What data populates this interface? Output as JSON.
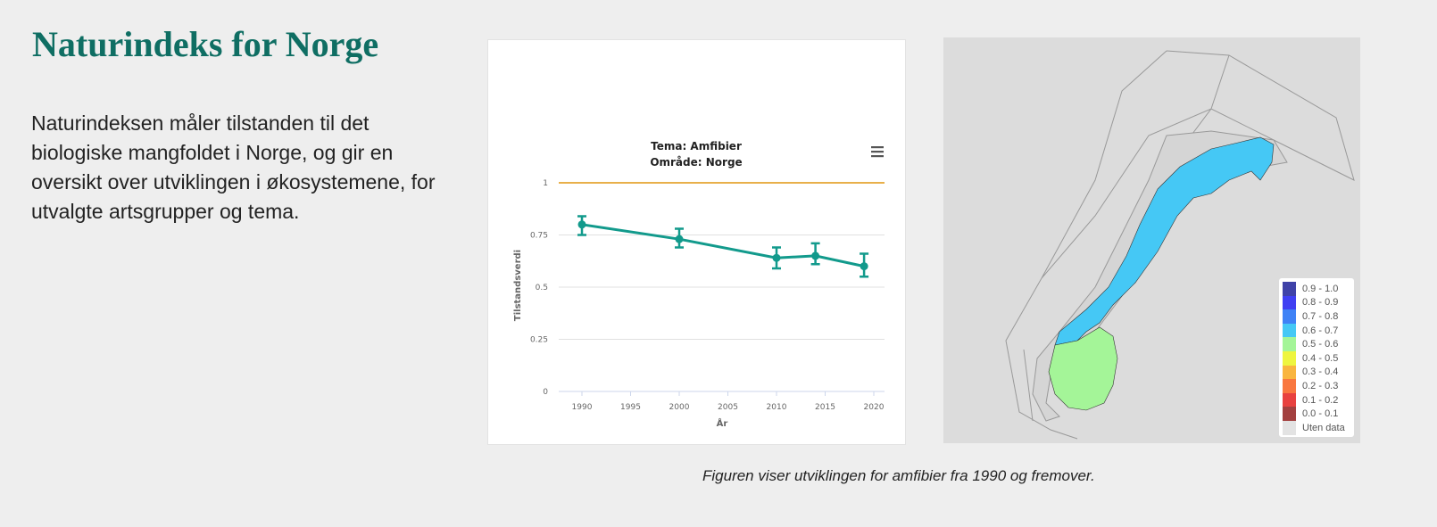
{
  "title": "Naturindeks for Norge",
  "intro": "Naturindeksen måler tilstanden til det biologiske mangfoldet i Norge, og gir en oversikt over utviklingen i økosystemene, for utvalgte artsgrupper og tema.",
  "caption": "Figuren viser utviklingen for amfibier fra 1990 og fremover.",
  "chart_data": {
    "type": "line",
    "title": "Tema: Amfibier",
    "subtitle": "Område: Norge",
    "xlabel": "År",
    "ylabel": "Tilstandsverdi",
    "xlim": [
      1987.5,
      2021.5
    ],
    "ylim": [
      0,
      1
    ],
    "x_ticks": [
      "1990",
      "1995",
      "2000",
      "2005",
      "2010",
      "2015",
      "2020"
    ],
    "y_ticks": [
      "0",
      "0.25",
      "0.5",
      "0.75",
      "1"
    ],
    "grid": true,
    "reference_line": {
      "y": 1,
      "color": "#e8b04a"
    },
    "series": [
      {
        "color": "#129a8c",
        "points": [
          {
            "x": 1990,
            "y": 0.8,
            "low": 0.75,
            "high": 0.84
          },
          {
            "x": 2000,
            "y": 0.73,
            "low": 0.69,
            "high": 0.78
          },
          {
            "x": 2010,
            "y": 0.64,
            "low": 0.59,
            "high": 0.69
          },
          {
            "x": 2014,
            "y": 0.65,
            "low": 0.61,
            "high": 0.71
          },
          {
            "x": 2019,
            "y": 0.6,
            "low": 0.55,
            "high": 0.66
          }
        ]
      }
    ]
  },
  "menu_icon": "hamburger-icon",
  "map": {
    "legend": [
      {
        "label": "0.9 - 1.0",
        "color": "#3f42a8"
      },
      {
        "label": "0.8 - 0.9",
        "color": "#3f3ff2"
      },
      {
        "label": "0.7 - 0.8",
        "color": "#3f82f6"
      },
      {
        "label": "0.6 - 0.7",
        "color": "#45c8f5"
      },
      {
        "label": "0.5 - 0.6",
        "color": "#a4f598"
      },
      {
        "label": "0.4 - 0.5",
        "color": "#eef53f"
      },
      {
        "label": "0.3 - 0.4",
        "color": "#f9b53f"
      },
      {
        "label": "0.2 - 0.3",
        "color": "#f9773f"
      },
      {
        "label": "0.1 - 0.2",
        "color": "#e8413f"
      },
      {
        "label": "0.0 - 0.1",
        "color": "#a3403f"
      },
      {
        "label": "Uten data",
        "color": "#e3e3e3"
      }
    ]
  }
}
